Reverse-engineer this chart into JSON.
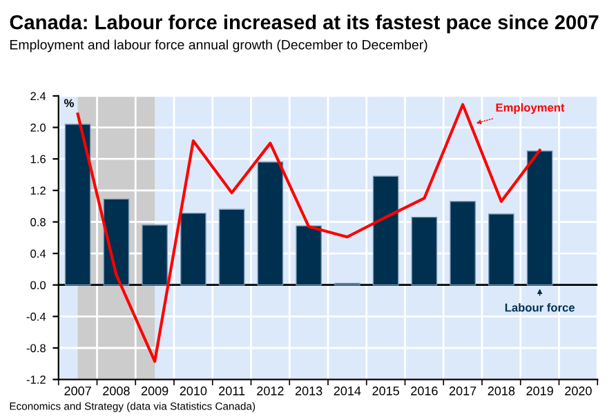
{
  "chart_data": {
    "type": "bar",
    "title": "Canada: Labour force increased at its fastest pace since 2007",
    "subtitle": "Employment and labour force annual growth (December to December)",
    "ylabel": "%",
    "categories": [
      "2007",
      "2008",
      "2009",
      "2010",
      "2011",
      "2012",
      "2013",
      "2014",
      "2015",
      "2016",
      "2017",
      "2018",
      "2019",
      "2020"
    ],
    "series": [
      {
        "name": "Labour force",
        "color": "#003050",
        "values": [
          2.04,
          1.09,
          0.76,
          0.91,
          0.96,
          1.56,
          0.75,
          0.02,
          1.38,
          0.86,
          1.06,
          0.9,
          1.7,
          null
        ]
      },
      {
        "name": "Employment",
        "type": "line",
        "color": "#ff0000",
        "values": [
          2.17,
          0.13,
          -0.97,
          1.83,
          1.17,
          1.8,
          0.74,
          0.61,
          0.86,
          1.1,
          2.29,
          1.06,
          1.71,
          null
        ]
      }
    ],
    "ylim": [
      -1.2,
      2.4
    ],
    "yticks": [
      {
        "value": -1.2,
        "label": "-1.2"
      },
      {
        "value": -0.8,
        "label": "-0.8"
      },
      {
        "value": -0.4,
        "label": "-0.4"
      },
      {
        "value": 0,
        "label": "0.0"
      },
      {
        "value": 0.4,
        "label": "0.4"
      },
      {
        "value": 0.8,
        "label": "0.8"
      },
      {
        "value": 1.2,
        "label": "1.2"
      },
      {
        "value": 1.6,
        "label": "1.6"
      },
      {
        "value": 2.0,
        "label": "2.0"
      },
      {
        "value": 2.4,
        "label": "2.4"
      }
    ],
    "bands": [
      {
        "axis": "x",
        "from": "2007",
        "to": "2009",
        "color": "#cccccc"
      }
    ],
    "grid": true,
    "annotations": [
      "Economics and Strategy (data via Statistics Canada)"
    ]
  }
}
